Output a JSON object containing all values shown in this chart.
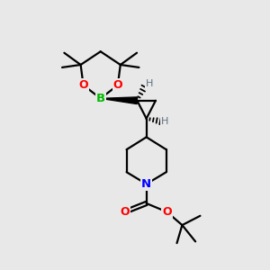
{
  "bg_color": "#e8e8e8",
  "bond_color": "#000000",
  "boron_color": "#00bb00",
  "oxygen_color": "#ff0000",
  "nitrogen_color": "#0000ff",
  "h_stereo_color": "#607080",
  "line_width": 1.6,
  "figsize": [
    3.0,
    3.0
  ],
  "dpi": 100,
  "xlim": [
    0,
    10
  ],
  "ylim": [
    0,
    10
  ]
}
